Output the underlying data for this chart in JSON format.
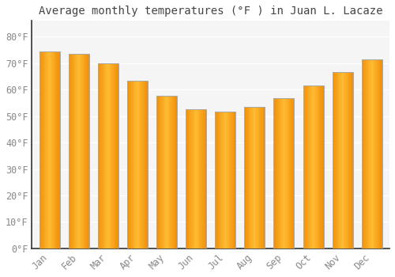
{
  "title": "Average monthly temperatures (°F ) in Juan L. Lacaze",
  "months": [
    "Jan",
    "Feb",
    "Mar",
    "Apr",
    "May",
    "Jun",
    "Jul",
    "Aug",
    "Sep",
    "Oct",
    "Nov",
    "Dec"
  ],
  "values": [
    74.5,
    73.5,
    69.8,
    63.5,
    57.8,
    52.5,
    51.8,
    53.5,
    56.8,
    61.5,
    66.5,
    71.5
  ],
  "bar_color_center": "#FFBB33",
  "bar_color_edge": "#F0900A",
  "bar_border_color": "#AAAAAA",
  "yticks": [
    0,
    10,
    20,
    30,
    40,
    50,
    60,
    70,
    80
  ],
  "ytick_labels": [
    "0°F",
    "10°F",
    "20°F",
    "30°F",
    "40°F",
    "50°F",
    "60°F",
    "70°F",
    "80°F"
  ],
  "ylim": [
    0,
    86
  ],
  "background_color": "#FFFFFF",
  "plot_bg_color": "#F5F5F5",
  "grid_color": "#FFFFFF",
  "title_fontsize": 10,
  "tick_fontsize": 8.5,
  "title_color": "#444444",
  "tick_color": "#888888",
  "spine_color": "#333333",
  "bar_width": 0.7
}
